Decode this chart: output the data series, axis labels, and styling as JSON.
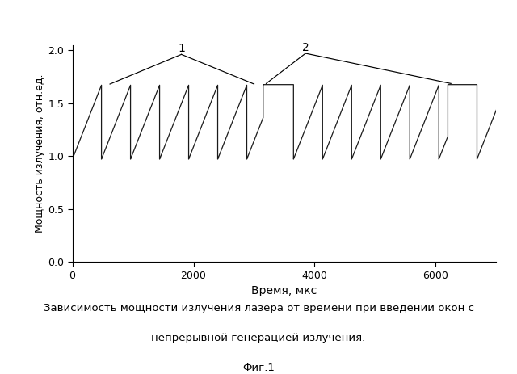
{
  "xlabel": "Время, мкс",
  "ylabel": "Мощность излучения, отн.ед.",
  "xlim": [
    0,
    7000
  ],
  "ylim": [
    0.0,
    2.05
  ],
  "yticks": [
    0.0,
    0.5,
    1.0,
    1.5,
    2.0
  ],
  "xticks": [
    0,
    2000,
    4000,
    6000
  ],
  "bg_color": "#ffffff",
  "line_color": "#1a1a1a",
  "sawtooth_period": 480,
  "sawtooth_min": 0.97,
  "sawtooth_max": 1.67,
  "cw_window_start1": 3150,
  "cw_window_end1": 3650,
  "cw_window_level": 1.675,
  "cw_window_start2": 6200,
  "cw_window_end2": 6680,
  "caption_line1": "Зависимость мощности излучения лазера от времени при введении окон с",
  "caption_line2": "непрерывной генерацией излучения.",
  "caption_fig": "Фиг.1"
}
